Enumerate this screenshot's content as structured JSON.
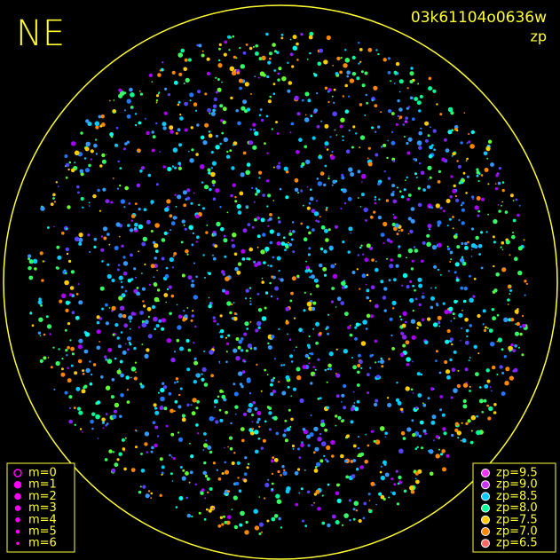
{
  "header": {
    "title": "NE",
    "frame": "03k61104o0636w",
    "quantity": "zp"
  },
  "legend_m": {
    "items": [
      {
        "label": "m=0"
      },
      {
        "label": "m=1"
      },
      {
        "label": "m=2"
      },
      {
        "label": "m=3"
      },
      {
        "label": "m=4"
      },
      {
        "label": "m=5"
      },
      {
        "label": "m=6"
      }
    ],
    "color": "#ff00ff"
  },
  "legend_zp": {
    "items": [
      {
        "label": "zp=9.5",
        "color": "#ff33ff"
      },
      {
        "label": "zp=9.0",
        "color": "#cc33ff"
      },
      {
        "label": "zp=8.5",
        "color": "#00ccff"
      },
      {
        "label": "zp=8.0",
        "color": "#00ff99"
      },
      {
        "label": "zp=7.5",
        "color": "#ffcc00"
      },
      {
        "label": "zp=7.0",
        "color": "#ff8800"
      },
      {
        "label": "zp=6.5",
        "color": "#ff6666"
      }
    ]
  }
}
